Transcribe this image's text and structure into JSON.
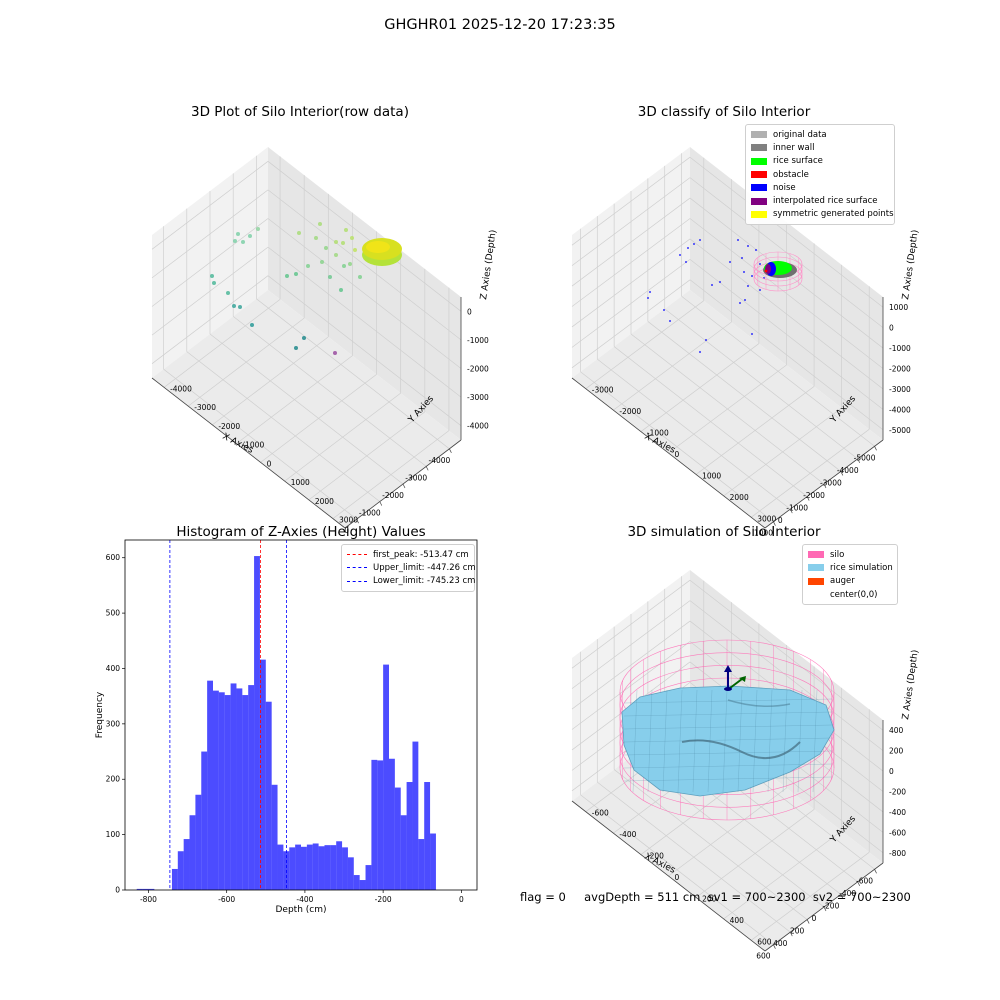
{
  "figure": {
    "suptitle": "GHGHR01 2025-12-20 17:23:35",
    "footer": "flag = 0     avgDepth = 511 cm  sv1 = 700~2300  sv2 = 700~2300"
  },
  "colors": {
    "histogram": "#0000ff",
    "first_peak": "#ff0000",
    "limits": "#0000ff",
    "silo": "#ff69b4",
    "rice": "#87ceeb",
    "auger": "#ff4500"
  },
  "plots": {
    "raw": {
      "title": "3D Plot of Silo Interior(row data)",
      "xlabel": "X Axies",
      "ylabel": "Y Axies",
      "zlabel": "Z Axies (Depth)",
      "xticks": [
        "-4000",
        "-3000",
        "-2000",
        "-1000",
        "0"
      ],
      "yticks": [
        "-4000",
        "-3000",
        "-2000",
        "-1000",
        "0",
        "1000",
        "2000",
        "3000"
      ],
      "zticks": [
        "0",
        "-1000",
        "-2000",
        "-3000",
        "-4000"
      ]
    },
    "classify": {
      "title": "3D classify of Silo Interior",
      "xlabel": "X Axies",
      "ylabel": "Y Axies",
      "zlabel": "Z Axies (Depth)",
      "xticks": [
        "-5000",
        "-4000",
        "-3000",
        "-2000",
        "-1000",
        "0",
        "1000"
      ],
      "yticks": [
        "-3000",
        "-2000",
        "-1000",
        "0",
        "1000",
        "2000",
        "3000"
      ],
      "zticks": [
        "1000",
        "0",
        "-1000",
        "-2000",
        "-3000",
        "-4000",
        "-5000"
      ],
      "legend": [
        {
          "label": "original data",
          "color": "#b0b0b0"
        },
        {
          "label": "inner wall",
          "color": "#808080"
        },
        {
          "label": "rice surface",
          "color": "#00ff00"
        },
        {
          "label": "obstacle",
          "color": "#ff0000"
        },
        {
          "label": "noise",
          "color": "#0000ff"
        },
        {
          "label": "interpolated rice surface",
          "color": "#800080"
        },
        {
          "label": "symmetric generated points",
          "color": "#ffff00"
        }
      ]
    },
    "simulation": {
      "title": "3D simulation of Silo Interior",
      "xlabel": "X Axies",
      "ylabel": "Y Axies",
      "zlabel": "Z Axies (Depth)",
      "xticks": [
        "-600",
        "-400",
        "-200",
        "0",
        "200",
        "400",
        "600"
      ],
      "yticks": [
        "-600",
        "-400",
        "-200",
        "0",
        "200",
        "400",
        "600"
      ],
      "zticks": [
        "400",
        "200",
        "0",
        "-200",
        "-400",
        "-600",
        "-800"
      ],
      "legend": [
        {
          "label": "silo",
          "color": "#ff69b4"
        },
        {
          "label": "rice simulation",
          "color": "#87ceeb"
        },
        {
          "label": "auger",
          "color": "#ff4500"
        },
        {
          "label": "center(0,0)",
          "color": ""
        }
      ]
    }
  },
  "chart_data": [
    {
      "type": "scatter",
      "title": "3D Plot of Silo Interior(row data)",
      "xlabel": "X Axies",
      "ylabel": "Y Axies",
      "zlabel": "Z Axies (Depth)",
      "xlim": [
        -4300,
        300
      ],
      "ylim": [
        -4200,
        3600
      ],
      "zlim": [
        -4500,
        200
      ]
    },
    {
      "type": "scatter",
      "title": "3D classify of Silo Interior",
      "xlabel": "X Axies",
      "ylabel": "Y Axies",
      "zlabel": "Z Axies (Depth)",
      "xlim": [
        -5300,
        1500
      ],
      "ylim": [
        -3500,
        3500
      ],
      "zlim": [
        -5500,
        1200
      ],
      "series": [
        {
          "name": "original data"
        },
        {
          "name": "inner wall"
        },
        {
          "name": "rice surface"
        },
        {
          "name": "obstacle"
        },
        {
          "name": "noise"
        },
        {
          "name": "interpolated rice surface"
        },
        {
          "name": "symmetric generated points"
        }
      ]
    },
    {
      "type": "bar",
      "title": "Histogram of Z-Axies (Height) Values",
      "xlabel": "Depth (cm)",
      "ylabel": "Frequency",
      "xlim": [
        -860,
        40
      ],
      "ylim": [
        0,
        632
      ],
      "xticks": [
        "-800",
        "-600",
        "-400",
        "-200",
        "0"
      ],
      "yticks": [
        "0",
        "100",
        "200",
        "300",
        "400",
        "500",
        "600"
      ],
      "bin_start": -830,
      "bin_width": 15,
      "values": [
        2,
        2,
        2,
        0,
        0,
        0,
        38,
        70,
        92,
        135,
        172,
        250,
        378,
        360,
        357,
        352,
        373,
        364,
        352,
        370,
        603,
        416,
        340,
        190,
        82,
        70,
        77,
        82,
        78,
        82,
        84,
        79,
        81,
        81,
        88,
        77,
        59,
        27,
        18,
        45,
        235,
        234,
        407,
        237,
        185,
        135,
        195,
        268,
        92,
        195,
        102
      ],
      "vlines": [
        {
          "name": "first_peak",
          "label": "first_peak: -513.47 cm",
          "value": -513.47
        },
        {
          "name": "Upper_limit",
          "label": "Upper_limit: -447.26 cm",
          "value": -447.26
        },
        {
          "name": "Lower_limit",
          "label": "Lower_limit: -745.23 cm",
          "value": -745.23
        }
      ],
      "legend_position": "upper right"
    },
    {
      "type": "surface",
      "title": "3D simulation of Silo Interior",
      "xlabel": "X Axies",
      "ylabel": "Y Axies",
      "zlabel": "Z Axies (Depth)",
      "xlim": [
        -700,
        700
      ],
      "ylim": [
        -700,
        700
      ],
      "zlim": [
        -950,
        450
      ],
      "series": [
        {
          "name": "silo"
        },
        {
          "name": "rice simulation"
        },
        {
          "name": "auger"
        },
        {
          "name": "center(0,0)"
        }
      ]
    }
  ]
}
